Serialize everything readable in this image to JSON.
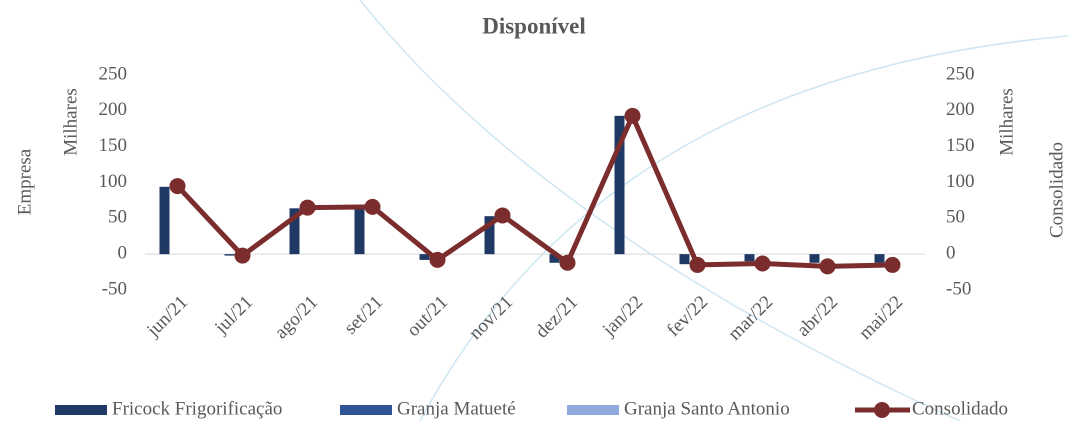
{
  "chart_data": {
    "type": "bar_line",
    "title": "Disponível",
    "y_label": "Empresa",
    "y_unit": "Milhares",
    "y2_label": "Consolidado",
    "y2_unit": "Milhares",
    "categories": [
      "jun/21",
      "jul/21",
      "ago/21",
      "set/21",
      "out/21",
      "nov/21",
      "dez/21",
      "jan/22",
      "fev/22",
      "mar/22",
      "abr/22",
      "mai/22"
    ],
    "series": [
      {
        "name": "Fricock Frigorificação",
        "color": "#1f3864",
        "type": "bar",
        "values": [
          94,
          -2,
          64,
          65,
          -8,
          53,
          -12,
          193,
          -14,
          -10,
          -12,
          -12
        ]
      },
      {
        "name": "Granja Matueté",
        "color": "#2f5597",
        "type": "bar",
        "values": [
          0,
          0,
          0,
          0,
          0,
          0,
          0,
          0,
          0,
          0,
          0,
          0
        ]
      },
      {
        "name": "Granja Santo Antonio",
        "color": "#8faadc",
        "type": "bar",
        "values": [
          0,
          0,
          0,
          0,
          0,
          0,
          0,
          0,
          0,
          0,
          0,
          0
        ]
      },
      {
        "name": "Consolidado",
        "color": "#7b2c2c",
        "type": "line",
        "axis": "y2",
        "values": [
          95,
          -2,
          65,
          66,
          -8,
          54,
          -12,
          193,
          -15,
          -13,
          -17,
          -15
        ]
      }
    ],
    "ylim": [
      -50,
      250
    ],
    "yticks": [
      -50,
      0,
      50,
      100,
      150,
      200,
      250
    ],
    "y2lim": [
      -50,
      250
    ],
    "y2ticks": [
      -50,
      0,
      50,
      100,
      150,
      200,
      250
    ],
    "grid": false,
    "legend": "bottom"
  }
}
